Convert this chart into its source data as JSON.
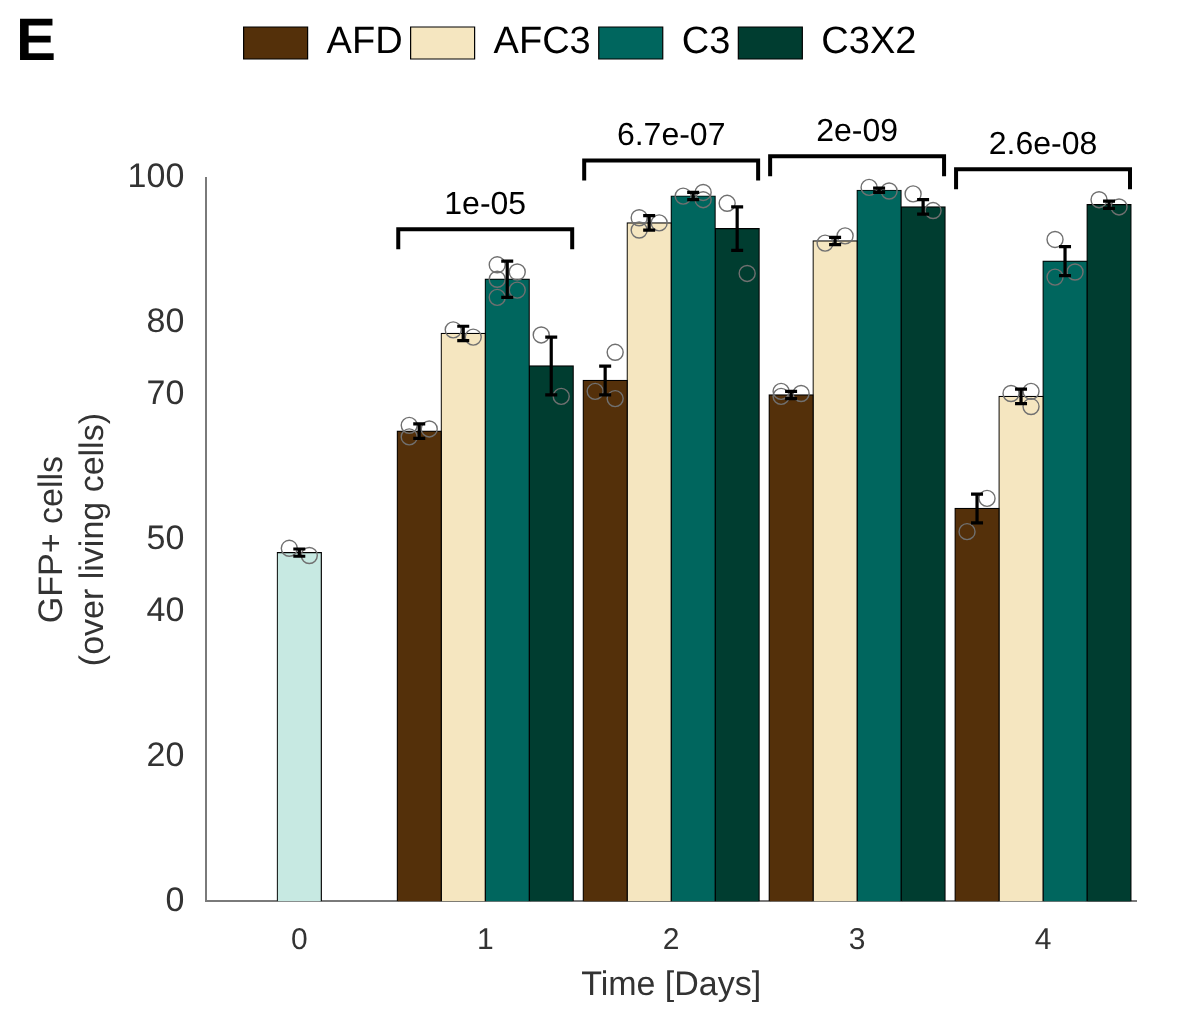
{
  "chart_data": {
    "type": "bar",
    "title": "E",
    "xlabel": "Time [Days]",
    "ylabel": "GFP+ cells\n(over living cells)",
    "categories": [
      "0",
      "1",
      "2",
      "3",
      "4"
    ],
    "series": [
      {
        "name": "AFD",
        "color": "#54300a",
        "values": [
          null,
          65.0,
          72.0,
          70.0,
          54.3
        ],
        "errors": [
          null,
          1,
          2,
          0.5,
          2
        ]
      },
      {
        "name": "AFC3",
        "color": "#f5e6c0",
        "values": [
          null,
          78.5,
          93.8,
          91.3,
          69.8
        ],
        "errors": [
          null,
          1,
          1,
          0.5,
          1
        ]
      },
      {
        "name": "C3",
        "color": "#00665e",
        "values": [
          null,
          86.0,
          97.5,
          98.3,
          88.5
        ],
        "errors": [
          null,
          2.5,
          0.5,
          0.3,
          2
        ]
      },
      {
        "name": "C3X2",
        "color": "#003d30",
        "values": [
          null,
          74.0,
          93.0,
          96.0,
          96.3
        ],
        "errors": [
          null,
          4,
          3,
          1,
          0.5
        ]
      },
      {
        "color": "#c7e9e2",
        "values": [
          48.2,
          null,
          null,
          null,
          null
        ],
        "errors": [
          0.5,
          null,
          null,
          null,
          null
        ]
      },
      {
        "type": "scatter",
        "color": "#707070",
        "x": [
          "1",
          "1",
          "1",
          "2",
          "2",
          "2",
          "3",
          "3",
          "3",
          "4",
          "4"
        ],
        "values": [
          65.8,
          65.3,
          64.2,
          75.9,
          70.5,
          69.5,
          70.5,
          70.2,
          69.8,
          55.7,
          51.1
        ]
      },
      {
        "type": "scatter",
        "color": "#707070",
        "x": [
          "1",
          "1",
          "2",
          "2",
          "2",
          "3",
          "3",
          "4",
          "4",
          "4"
        ],
        "values": [
          79.0,
          78.0,
          94.5,
          93.8,
          92.8,
          92.0,
          91.0,
          70.5,
          70.2,
          68.4
        ]
      },
      {
        "type": "scatter",
        "color": "#707070",
        "x": [
          "1",
          "1",
          "1",
          "1",
          "1",
          "2",
          "2",
          "2",
          "3",
          "3",
          "4",
          "4",
          "4"
        ],
        "values": [
          88.0,
          87.0,
          86.0,
          84.5,
          83.5,
          98.0,
          97.5,
          97.0,
          98.7,
          98.2,
          91.5,
          87.0,
          86.3
        ]
      },
      {
        "type": "scatter",
        "color": "#707070",
        "x": [
          "1",
          "1",
          "2",
          "2",
          "3",
          "3",
          "4",
          "4"
        ],
        "values": [
          78.3,
          69.8,
          96.5,
          86.8,
          97.8,
          95.5,
          97.0,
          96.0
        ]
      },
      {
        "type": "scatter",
        "color": "#707070",
        "x": [
          "0",
          "0"
        ],
        "values": [
          48.8,
          47.8
        ]
      }
    ],
    "annotations": [
      "1e-05",
      "6.7e-07",
      "2e-09",
      "2.6e-08"
    ],
    "ylim": [
      0,
      100
    ],
    "yticks": [
      0,
      20,
      40,
      50,
      70,
      80,
      100
    ],
    "grid": false,
    "legend": "top",
    "marker": "circle"
  }
}
